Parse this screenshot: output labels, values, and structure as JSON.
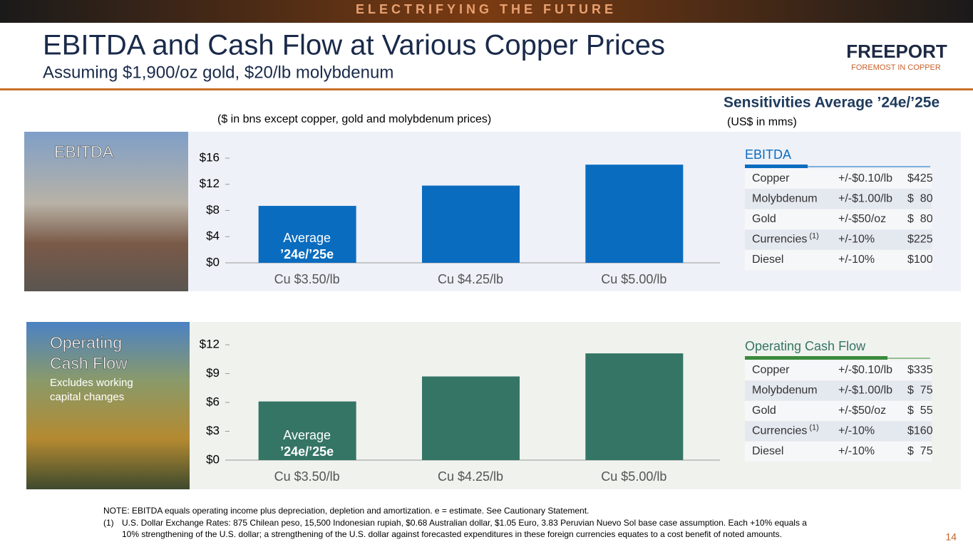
{
  "banner": "ELECTRIFYING THE FUTURE",
  "header": {
    "title": "EBITDA and Cash Flow at Various Copper Prices",
    "subtitle": "Assuming $1,900/oz gold, $20/lb molybdenum",
    "logo": "FREEPORT",
    "logo_tagline": "FOREMOST IN COPPER"
  },
  "units_note": "($ in bns except copper, gold and molybdenum prices)",
  "panels": [
    {
      "label_lines": [
        "EBITDA"
      ]
    },
    {
      "label_lines": [
        "Operating",
        "Cash Flow"
      ],
      "note_lines": [
        "Excludes working",
        "capital changes"
      ]
    }
  ],
  "chart_data": [
    {
      "type": "bar",
      "categories": [
        "Cu $3.50/lb",
        "Cu $4.25/lb",
        "Cu $5.00/lb"
      ],
      "values": [
        8.7,
        11.8,
        15.0
      ],
      "color": "#0a6cbf",
      "ylim": [
        0,
        16
      ],
      "yticks": [
        {
          "value": 0,
          "label": "$0"
        },
        {
          "value": 4,
          "label": "$4"
        },
        {
          "value": 8,
          "label": "$8"
        },
        {
          "value": 12,
          "label": "$12"
        },
        {
          "value": 16,
          "label": "$16"
        }
      ],
      "annotation_lines": [
        "Average",
        "’24e/’25e"
      ]
    },
    {
      "type": "bar",
      "categories": [
        "Cu $3.50/lb",
        "Cu $4.25/lb",
        "Cu $5.00/lb"
      ],
      "values": [
        6.1,
        8.7,
        11.1
      ],
      "color": "#357565",
      "ylim": [
        0,
        12
      ],
      "yticks": [
        {
          "value": 0,
          "label": "$0"
        },
        {
          "value": 3,
          "label": "$3"
        },
        {
          "value": 6,
          "label": "$6"
        },
        {
          "value": 9,
          "label": "$9"
        },
        {
          "value": 12,
          "label": "$12"
        }
      ],
      "annotation_lines": [
        "Average",
        "’24e/’25e"
      ]
    }
  ],
  "sensitivities": {
    "title": "Sensitivities Average ’24e/’25e",
    "units": "(US$ in mms)",
    "tables": [
      {
        "title": "EBITDA",
        "color": "#0a6cbf",
        "rows": [
          {
            "name": "Copper",
            "change": "+/-$0.10/lb",
            "value": "$425"
          },
          {
            "name": "Molybdenum",
            "change": "+/-$1.00/lb",
            "value": "$  80"
          },
          {
            "name": "Gold",
            "change": "+/-$50/oz",
            "value": "$  80"
          },
          {
            "name": "Currencies",
            "note": "(1)",
            "change": "+/-10%",
            "value": "$225"
          },
          {
            "name": "Diesel",
            "change": "+/-10%",
            "value": "$100"
          }
        ]
      },
      {
        "title": "Operating Cash Flow",
        "color": "#3a8a3a",
        "rows": [
          {
            "name": "Copper",
            "change": "+/-$0.10/lb",
            "value": "$335"
          },
          {
            "name": "Molybdenum",
            "change": "+/-$1.00/lb",
            "value": "$  75"
          },
          {
            "name": "Gold",
            "change": "+/-$50/oz",
            "value": "$  55"
          },
          {
            "name": "Currencies",
            "note": "(1)",
            "change": "+/-10%",
            "value": "$160"
          },
          {
            "name": "Diesel",
            "change": "+/-10%",
            "value": "$  75"
          }
        ]
      }
    ]
  },
  "footnotes": {
    "note": "NOTE: EBITDA equals operating income plus depreciation, depletion and amortization. e = estimate. See Cautionary Statement.",
    "marker": "(1)",
    "lines": [
      "U.S. Dollar Exchange Rates: 875 Chilean peso, 15,500 Indonesian rupiah, $0.68 Australian dollar, $1.05 Euro, 3.83 Peruvian Nuevo Sol base case assumption. Each +10% equals a",
      "10% strengthening of the U.S. dollar; a strengthening of the U.S. dollar against forecasted expenditures in these foreign currencies equates to a cost benefit of noted amounts."
    ]
  },
  "page_number": "14"
}
